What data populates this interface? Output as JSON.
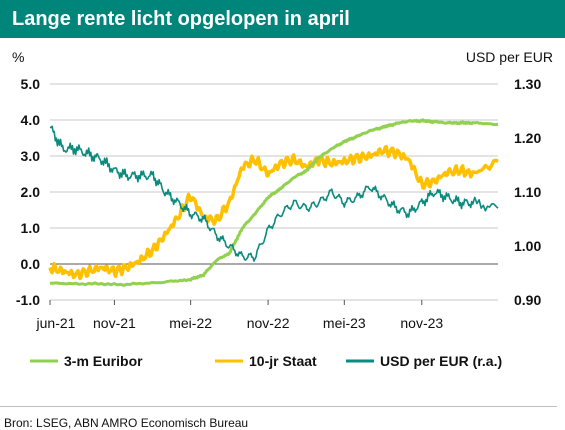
{
  "title": "Lange rente licht opgelopen in april",
  "source": "Bron: LSEG, ABN AMRO Economisch Bureau",
  "colors": {
    "header": "#00857a",
    "euribor": "#92d050",
    "staat": "#ffc000",
    "usd": "#0b8a7e"
  },
  "chart_data": {
    "type": "line",
    "left_axis": {
      "label": "%",
      "ticks": [
        "5.0",
        "4.0",
        "3.0",
        "2.0",
        "1.0",
        "0.0",
        "-1.0"
      ],
      "range": [
        -1.0,
        5.0
      ]
    },
    "right_axis": {
      "label": "USD per EUR",
      "ticks": [
        "1.30",
        "1.20",
        "1.10",
        "1.00",
        "0.90"
      ],
      "range": [
        0.9,
        1.3
      ]
    },
    "x_axis": {
      "ticks": [
        "jun-21",
        "nov-21",
        "mei-22",
        "nov-22",
        "mei-23",
        "nov-23"
      ],
      "range": [
        "2021-06-01",
        "2024-04-30"
      ]
    },
    "legend": {
      "position": "bottom",
      "entries": [
        "3-m Euribor",
        "10-jr Staat",
        "USD per EUR (r.a.)"
      ]
    },
    "series": [
      {
        "name": "3-m Euribor",
        "axis": "left",
        "x": [
          "2021-06-01",
          "2021-09-01",
          "2021-12-01",
          "2022-03-01",
          "2022-05-01",
          "2022-06-01",
          "2022-07-01",
          "2022-08-01",
          "2022-09-01",
          "2022-10-01",
          "2022-11-01",
          "2022-12-01",
          "2023-01-01",
          "2023-02-01",
          "2023-03-01",
          "2023-04-01",
          "2023-05-01",
          "2023-06-01",
          "2023-07-01",
          "2023-08-01",
          "2023-09-01",
          "2023-10-01",
          "2023-11-01",
          "2023-12-01",
          "2024-01-01",
          "2024-02-01",
          "2024-03-01",
          "2024-04-30"
        ],
        "y": [
          -0.54,
          -0.55,
          -0.57,
          -0.5,
          -0.43,
          -0.3,
          0.1,
          0.3,
          1.0,
          1.4,
          1.85,
          2.1,
          2.4,
          2.6,
          2.95,
          3.2,
          3.4,
          3.55,
          3.7,
          3.8,
          3.9,
          3.97,
          3.98,
          3.95,
          3.92,
          3.92,
          3.92,
          3.88
        ]
      },
      {
        "name": "10-jr Staat",
        "axis": "left",
        "x": [
          "2021-06-01",
          "2021-07-01",
          "2021-08-01",
          "2021-09-01",
          "2021-10-01",
          "2021-11-01",
          "2021-12-01",
          "2022-01-01",
          "2022-02-01",
          "2022-03-01",
          "2022-04-01",
          "2022-05-01",
          "2022-06-01",
          "2022-07-01",
          "2022-08-01",
          "2022-09-01",
          "2022-10-01",
          "2022-11-01",
          "2022-12-01",
          "2023-01-01",
          "2023-02-01",
          "2023-03-01",
          "2023-04-01",
          "2023-05-01",
          "2023-06-01",
          "2023-07-01",
          "2023-08-01",
          "2023-09-01",
          "2023-10-01",
          "2023-11-01",
          "2023-12-01",
          "2024-01-01",
          "2024-02-01",
          "2024-03-01",
          "2024-04-30"
        ],
        "y": [
          -0.1,
          -0.2,
          -0.3,
          -0.2,
          -0.1,
          -0.2,
          -0.1,
          0.1,
          0.4,
          0.8,
          1.3,
          1.9,
          1.3,
          1.2,
          1.7,
          2.7,
          2.9,
          2.5,
          2.8,
          2.9,
          2.7,
          2.9,
          2.8,
          2.85,
          2.95,
          3.0,
          3.15,
          3.1,
          2.9,
          2.2,
          2.3,
          2.55,
          2.6,
          2.5,
          2.85
        ]
      },
      {
        "name": "USD per EUR (r.a.)",
        "axis": "right",
        "x": [
          "2021-06-01",
          "2021-07-01",
          "2021-08-01",
          "2021-09-01",
          "2021-10-01",
          "2021-11-01",
          "2021-12-01",
          "2022-01-01",
          "2022-02-01",
          "2022-03-01",
          "2022-04-01",
          "2022-05-01",
          "2022-06-01",
          "2022-07-01",
          "2022-08-01",
          "2022-09-01",
          "2022-10-01",
          "2022-11-01",
          "2022-12-01",
          "2023-01-01",
          "2023-02-01",
          "2023-03-01",
          "2023-04-01",
          "2023-05-01",
          "2023-06-01",
          "2023-07-01",
          "2023-08-01",
          "2023-09-01",
          "2023-10-01",
          "2023-11-01",
          "2023-12-01",
          "2024-01-01",
          "2024-02-01",
          "2024-03-01",
          "2024-04-30"
        ],
        "y": [
          1.22,
          1.18,
          1.18,
          1.17,
          1.16,
          1.14,
          1.13,
          1.13,
          1.13,
          1.1,
          1.08,
          1.06,
          1.05,
          1.02,
          1.0,
          0.98,
          0.98,
          1.03,
          1.06,
          1.08,
          1.07,
          1.08,
          1.1,
          1.08,
          1.09,
          1.11,
          1.09,
          1.07,
          1.06,
          1.08,
          1.1,
          1.09,
          1.08,
          1.08,
          1.07
        ]
      }
    ]
  }
}
